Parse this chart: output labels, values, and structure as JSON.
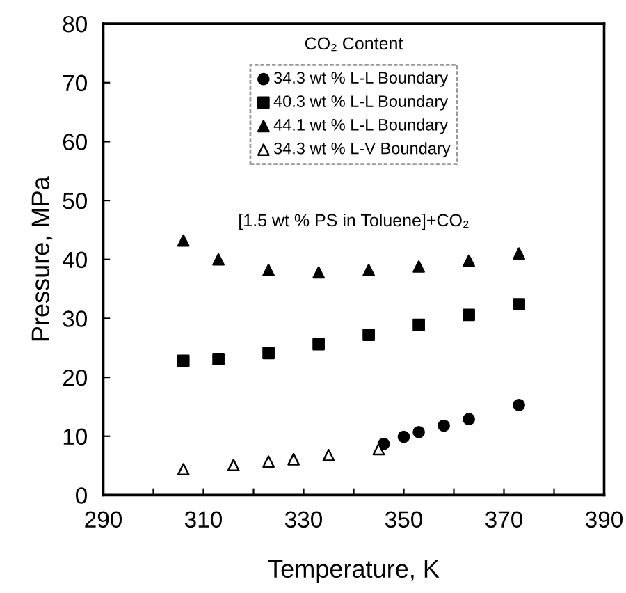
{
  "chart_data": {
    "type": "scatter",
    "xlabel": "Temperature, K",
    "ylabel": "Pressure, MPa",
    "legend_title": "CO₂ Content",
    "legend": "top",
    "grid": false,
    "xlim": [
      290,
      390
    ],
    "ylim": [
      0,
      80
    ],
    "xticks": [
      290,
      {
        "value": 300,
        "label": null
      },
      310,
      {
        "value": 320,
        "label": null
      },
      330,
      {
        "value": 340,
        "label": null
      },
      350,
      {
        "value": 360,
        "label": null
      },
      370,
      {
        "value": 380,
        "label": null
      },
      390
    ],
    "yticks": [
      0,
      10,
      20,
      30,
      40,
      50,
      60,
      70,
      80
    ],
    "annotations": [
      "[1.5 wt % PS in Toluene]+CO₂"
    ],
    "series": [
      {
        "name": "34.3 wt % L-L Boundary",
        "color": "#000000",
        "marker": "circle",
        "x": [
          346,
          350,
          353,
          358,
          363,
          373
        ],
        "values": [
          8.7,
          9.9,
          10.7,
          11.8,
          12.9,
          15.3
        ]
      },
      {
        "name": "40.3 wt % L-L Boundary",
        "color": "#000000",
        "marker": "square",
        "x": [
          306,
          313,
          323,
          333,
          343,
          353,
          363,
          373
        ],
        "values": [
          22.8,
          23.1,
          24.1,
          25.6,
          27.2,
          28.9,
          30.6,
          32.4
        ]
      },
      {
        "name": "44.1 wt % L-L Boundary",
        "color": "#000000",
        "marker": "triangle",
        "x": [
          306,
          313,
          323,
          333,
          343,
          353,
          363,
          373
        ],
        "values": [
          43.2,
          40.0,
          38.2,
          37.8,
          38.2,
          38.8,
          39.8,
          41.0
        ]
      },
      {
        "name": "34.3 wt % L-V Boundary",
        "color": "#ffffff",
        "marker": "triangle",
        "x": [
          306,
          316,
          323,
          328,
          335,
          345
        ],
        "values": [
          4.4,
          5.1,
          5.7,
          6.1,
          6.8,
          7.8
        ]
      }
    ]
  }
}
